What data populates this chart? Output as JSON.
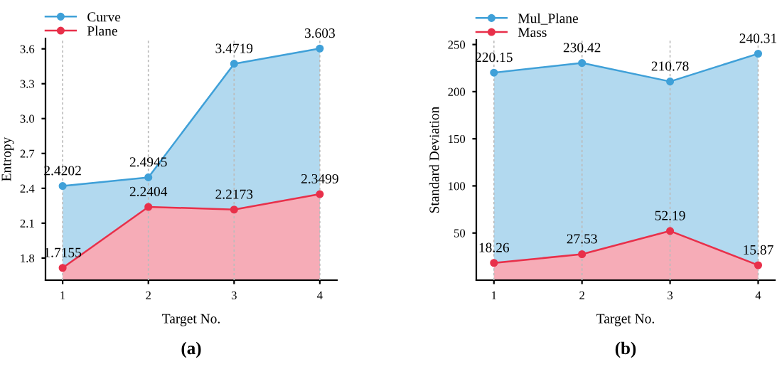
{
  "chart_data": [
    {
      "type": "area",
      "xlabel": "Target No.",
      "ylabel": "Entropy",
      "annotations": [
        "(a)"
      ],
      "x": [
        1,
        2,
        3,
        4
      ],
      "xlim": [
        0.8,
        4.2
      ],
      "xticks": [
        1,
        2,
        3,
        4
      ],
      "ylim": [
        1.61,
        3.69
      ],
      "yticks": [
        1.8,
        2.1,
        2.4,
        2.7,
        {
          "value": 3.0,
          "label": "3.0"
        },
        3.3,
        3.6
      ],
      "grid": "x",
      "legend": "top left",
      "marker": "circle",
      "data_labels": true,
      "series": [
        {
          "name": "Curve",
          "color": "#3fa0d8",
          "values": [
            2.4202,
            2.4945,
            3.4719,
            3.603
          ]
        },
        {
          "name": "Plane",
          "color": "#e8304a",
          "values": [
            1.7155,
            2.2404,
            2.2173,
            2.3499
          ]
        }
      ]
    },
    {
      "type": "area",
      "xlabel": "Target No.",
      "ylabel": "Standard Deviation",
      "annotations": [
        "(b)"
      ],
      "x": [
        1,
        2,
        3,
        4
      ],
      "xlim": [
        0.8,
        4.19
      ],
      "xticks": [
        1,
        2,
        3,
        4
      ],
      "ylim": [
        0,
        255
      ],
      "yticks": [
        50,
        100,
        150,
        200,
        250
      ],
      "grid": "x",
      "legend": "top left",
      "marker": "circle",
      "data_labels": true,
      "series": [
        {
          "name": "Mul_Plane",
          "color": "#3fa0d8",
          "values": [
            220.15,
            230.42,
            210.78,
            240.31
          ]
        },
        {
          "name": "Mass",
          "color": "#e8304a",
          "values": [
            18.26,
            27.53,
            52.19,
            15.87
          ]
        }
      ]
    }
  ]
}
